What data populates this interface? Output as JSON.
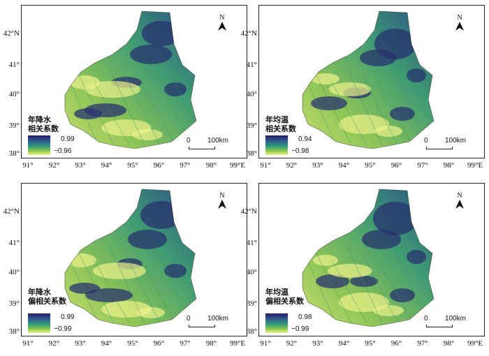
{
  "axes": {
    "lat_labels": [
      "42°N",
      "41°",
      "40°",
      "39°",
      "38°"
    ],
    "lon_labels": [
      "91°",
      "92°",
      "93°",
      "94°",
      "95°",
      "96°",
      "97°",
      "98°",
      "99°E"
    ]
  },
  "north_arrow_label": "N",
  "scale_bar": {
    "start": "0",
    "end": "100km"
  },
  "colors": {
    "high": "#241a6b",
    "mid": "#2f9a7a",
    "low": "#eef28a",
    "frame": "#222222"
  },
  "panels": [
    {
      "legend_title": [
        "年降水",
        "相关系数"
      ],
      "max": "0.99",
      "min": "−0.96"
    },
    {
      "legend_title": [
        "年均温",
        "相关系数"
      ],
      "max": "0.94",
      "min": "−0.98"
    },
    {
      "legend_title": [
        "年降水",
        "偏相关系数"
      ],
      "max": "0.99",
      "min": "−0.99"
    },
    {
      "legend_title": [
        "年均温",
        "偏相关系数"
      ],
      "max": "0.98",
      "min": "−0.99"
    }
  ]
}
